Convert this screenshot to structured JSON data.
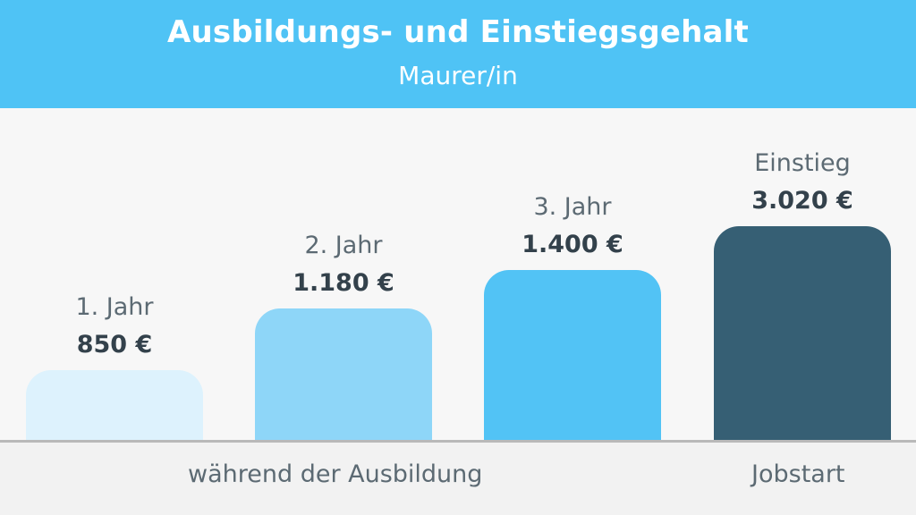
{
  "header": {
    "title": "Ausbildungs- und Einstiegsgehalt",
    "subtitle": "Maurer/in"
  },
  "chart_data": {
    "type": "bar",
    "categories": [
      "1. Jahr",
      "2. Jahr",
      "3. Jahr",
      "Einstieg"
    ],
    "values": [
      850,
      1180,
      1400,
      3020
    ],
    "value_labels": [
      "850 €",
      "1.180 €",
      "1.400 €",
      "3.020 €"
    ],
    "bar_colors": [
      "#ddf2fd",
      "#8ed6f8",
      "#52c3f5",
      "#365f74"
    ],
    "groups": [
      {
        "label": "während der Ausbildung"
      },
      {
        "label": "Jobstart"
      }
    ],
    "title": "Ausbildungs- und Einstiegsgehalt",
    "subtitle": "Maurer/in",
    "grid": false
  }
}
